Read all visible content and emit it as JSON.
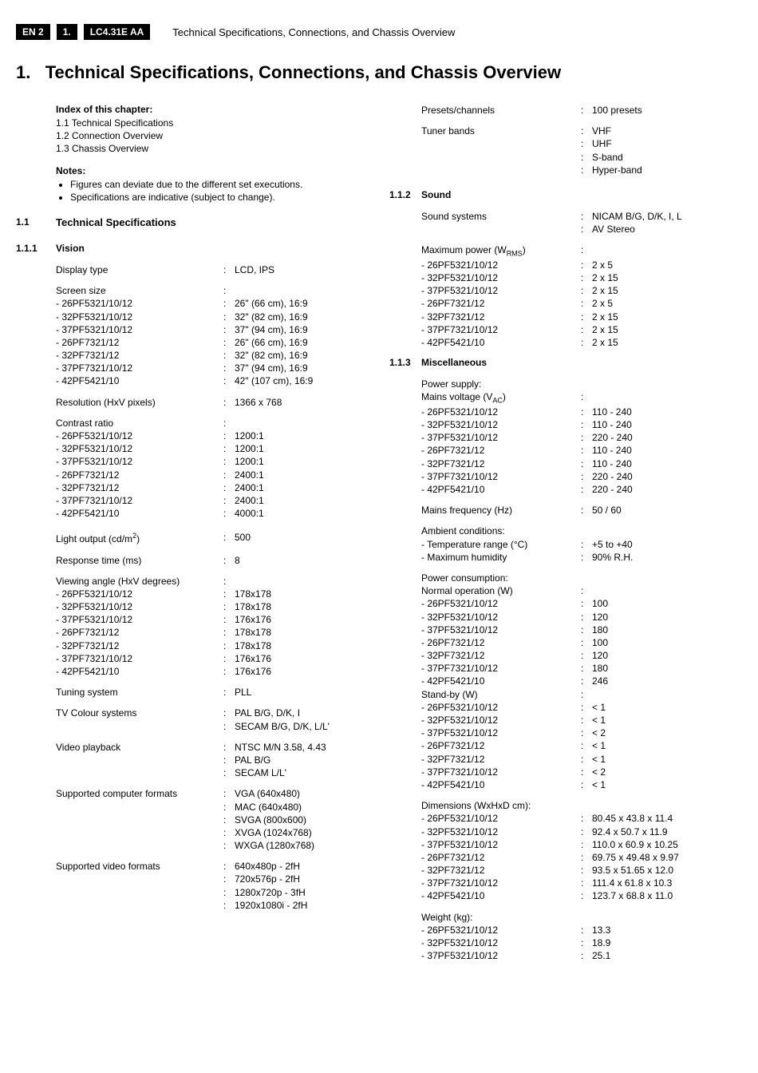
{
  "header": {
    "en_tag": "EN 2",
    "sec_tag": "1.",
    "model_tag": "LC4.31E AA",
    "header_title": "Technical Specifications, Connections, and Chassis Overview"
  },
  "h1_num": "1.",
  "h1_title": "Technical Specifications, Connections, and Chassis Overview",
  "index": {
    "title": "Index of this chapter:",
    "items": [
      "1.1  Technical Specifications",
      "1.2  Connection Overview",
      "1.3  Chassis Overview"
    ]
  },
  "notes": {
    "title": "Notes:",
    "items": [
      "Figures can deviate due to the different set executions.",
      "Specifications are indicative (subject to change)."
    ]
  },
  "s11_num": "1.1",
  "s11_title": "Technical Specifications",
  "s111_num": "1.1.1",
  "s111_title": "Vision",
  "vision": {
    "display_type_label": "Display type",
    "display_type": "LCD, IPS",
    "screen_size_label": "Screen size",
    "screen_sizes": [
      {
        "model": "- 26PF5321/10/12",
        "val": "26\" (66 cm), 16:9"
      },
      {
        "model": "- 32PF5321/10/12",
        "val": "32\" (82 cm), 16:9"
      },
      {
        "model": "- 37PF5321/10/12",
        "val": "37\" (94 cm), 16:9"
      },
      {
        "model": "- 26PF7321/12",
        "val": "26\" (66 cm), 16:9"
      },
      {
        "model": "- 32PF7321/12",
        "val": "32\" (82 cm), 16:9"
      },
      {
        "model": "- 37PF7321/10/12",
        "val": "37\" (94 cm), 16:9"
      },
      {
        "model": "- 42PF5421/10",
        "val": "42\" (107 cm), 16:9"
      }
    ],
    "resolution_label": "Resolution (HxV pixels)",
    "resolution": "1366 x 768",
    "contrast_label": "Contrast ratio",
    "contrast": [
      {
        "model": "- 26PF5321/10/12",
        "val": "1200:1"
      },
      {
        "model": "- 32PF5321/10/12",
        "val": "1200:1"
      },
      {
        "model": "- 37PF5321/10/12",
        "val": "1200:1"
      },
      {
        "model": "- 26PF7321/12",
        "val": "2400:1"
      },
      {
        "model": "- 32PF7321/12",
        "val": "2400:1"
      },
      {
        "model": "- 37PF7321/10/12",
        "val": "2400:1"
      },
      {
        "model": "- 42PF5421/10",
        "val": "4000:1"
      }
    ],
    "light_output_label_pre": "Light output (cd/m",
    "light_output_label_post": ")",
    "light_output": "500",
    "response_label": "Response time (ms)",
    "response": "8",
    "viewing_label": "Viewing angle (HxV degrees)",
    "viewing": [
      {
        "model": "- 26PF5321/10/12",
        "val": "178x178"
      },
      {
        "model": "- 32PF5321/10/12",
        "val": "178x178"
      },
      {
        "model": "- 37PF5321/10/12",
        "val": "176x176"
      },
      {
        "model": "- 26PF7321/12",
        "val": "178x178"
      },
      {
        "model": "- 32PF7321/12",
        "val": "178x178"
      },
      {
        "model": "- 37PF7321/10/12",
        "val": "176x176"
      },
      {
        "model": "- 42PF5421/10",
        "val": "176x176"
      }
    ],
    "tuning_label": "Tuning system",
    "tuning": "PLL",
    "tv_colour_label": "TV Colour systems",
    "tv_colour": [
      "PAL B/G, D/K, I",
      "SECAM B/G, D/K, L/L'"
    ],
    "video_playback_label": "Video playback",
    "video_playback": [
      "NTSC M/N 3.58, 4.43",
      "PAL B/G",
      "SECAM L/L'"
    ],
    "computer_formats_label": "Supported computer formats",
    "computer_formats": [
      "VGA (640x480)",
      "MAC (640x480)",
      "SVGA (800x600)",
      "XVGA (1024x768)",
      "WXGA (1280x768)"
    ],
    "video_formats_label": "Supported video formats",
    "video_formats": [
      "640x480p - 2fH",
      "720x576p - 2fH",
      "1280x720p - 3fH",
      "1920x1080i - 2fH"
    ]
  },
  "right_top": {
    "presets_label": "Presets/channels",
    "presets": "100 presets",
    "tuner_label": "Tuner bands",
    "tuner": [
      "VHF",
      "UHF",
      "S-band",
      "Hyper-band"
    ]
  },
  "s112_num": "1.1.2",
  "s112_title": "Sound",
  "sound": {
    "systems_label": "Sound systems",
    "systems": [
      "NICAM B/G, D/K, I, L",
      "AV Stereo"
    ],
    "max_power_label_pre": "Maximum power (W",
    "max_power_label_post": ")",
    "max_power": [
      {
        "model": "- 26PF5321/10/12",
        "val": "2 x 5"
      },
      {
        "model": "- 32PF5321/10/12",
        "val": "2 x 15"
      },
      {
        "model": "- 37PF5321/10/12",
        "val": "2 x 15"
      },
      {
        "model": "- 26PF7321/12",
        "val": "2 x 5"
      },
      {
        "model": "- 32PF7321/12",
        "val": "2 x 15"
      },
      {
        "model": "- 37PF7321/10/12",
        "val": "2 x 15"
      },
      {
        "model": "- 42PF5421/10",
        "val": "2 x 15"
      }
    ]
  },
  "s113_num": "1.1.3",
  "s113_title": "Miscellaneous",
  "misc": {
    "power_supply_label": "Power supply:",
    "mains_v_label_pre": "Mains voltage (V",
    "mains_v_label_post": ")",
    "mains_v": [
      {
        "model": "- 26PF5321/10/12",
        "val": "110 - 240"
      },
      {
        "model": "- 32PF5321/10/12",
        "val": "110 - 240"
      },
      {
        "model": "- 37PF5321/10/12",
        "val": "220 - 240"
      },
      {
        "model": "- 26PF7321/12",
        "val": "110 - 240"
      },
      {
        "model": "- 32PF7321/12",
        "val": "110 - 240"
      },
      {
        "model": "- 37PF7321/10/12",
        "val": "220 - 240"
      },
      {
        "model": "- 42PF5421/10",
        "val": "220 - 240"
      }
    ],
    "mains_f_label": "Mains frequency (Hz)",
    "mains_f": "50 / 60",
    "ambient_label": "Ambient conditions:",
    "temp_label": "- Temperature range (°C)",
    "temp": "+5 to +40",
    "humidity_label": "- Maximum humidity",
    "humidity": "90% R.H.",
    "power_cons_label": "Power consumption:",
    "normal_op_label": "Normal operation (W)",
    "normal_op": [
      {
        "model": "- 26PF5321/10/12",
        "val": "100"
      },
      {
        "model": "- 32PF5321/10/12",
        "val": "120"
      },
      {
        "model": "- 37PF5321/10/12",
        "val": "180"
      },
      {
        "model": "- 26PF7321/12",
        "val": "100"
      },
      {
        "model": "- 32PF7321/12",
        "val": "120"
      },
      {
        "model": "- 37PF7321/10/12",
        "val": "180"
      },
      {
        "model": "- 42PF5421/10",
        "val": "246"
      }
    ],
    "standby_label": "Stand-by (W)",
    "standby": [
      {
        "model": "- 26PF5321/10/12",
        "val": "< 1"
      },
      {
        "model": "- 32PF5321/10/12",
        "val": "< 1"
      },
      {
        "model": "- 37PF5321/10/12",
        "val": "< 2"
      },
      {
        "model": "- 26PF7321/12",
        "val": "< 1"
      },
      {
        "model": "- 32PF7321/12",
        "val": "< 1"
      },
      {
        "model": "- 37PF7321/10/12",
        "val": "< 2"
      },
      {
        "model": "- 42PF5421/10",
        "val": "< 1"
      }
    ],
    "dims_label": "Dimensions (WxHxD cm):",
    "dims": [
      {
        "model": "- 26PF5321/10/12",
        "val": "80.45 x 43.8 x 11.4"
      },
      {
        "model": "- 32PF5321/10/12",
        "val": "92.4 x 50.7 x 11.9"
      },
      {
        "model": "- 37PF5321/10/12",
        "val": "110.0 x 60.9 x 10.25"
      },
      {
        "model": "- 26PF7321/12",
        "val": "69.75 x 49.48 x 9.97"
      },
      {
        "model": "- 32PF7321/12",
        "val": "93.5 x 51.65 x 12.0"
      },
      {
        "model": "- 37PF7321/10/12",
        "val": "111.4 x 61.8 x 10.3"
      },
      {
        "model": "- 42PF5421/10",
        "val": "123.7 x 68.8 x 11.0"
      }
    ],
    "weight_label": "Weight (kg):",
    "weight": [
      {
        "model": "- 26PF5321/10/12",
        "val": "13.3"
      },
      {
        "model": "- 32PF5321/10/12",
        "val": "18.9"
      },
      {
        "model": "- 37PF5321/10/12",
        "val": "25.1"
      }
    ]
  }
}
